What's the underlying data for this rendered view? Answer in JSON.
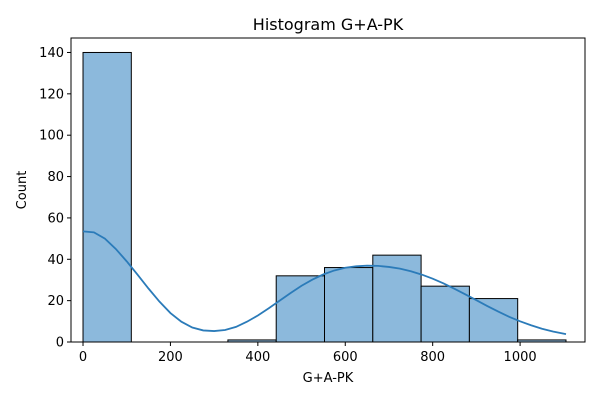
{
  "chart_data": {
    "type": "bar",
    "title": "Histogram G+A-PK",
    "xlabel": "G+A-PK",
    "ylabel": "Count",
    "xlim": [
      -27.5,
      1148.5
    ],
    "ylim": [
      0,
      147
    ],
    "xticks": [
      0,
      200,
      400,
      600,
      800,
      1000
    ],
    "yticks": [
      0,
      20,
      40,
      60,
      80,
      100,
      120,
      140
    ],
    "bins": [
      {
        "x0": 0,
        "x1": 110.5,
        "count": 140
      },
      {
        "x0": 110.5,
        "x1": 221,
        "count": 0
      },
      {
        "x0": 221,
        "x1": 331.5,
        "count": 0
      },
      {
        "x0": 331.5,
        "x1": 442,
        "count": 1
      },
      {
        "x0": 442,
        "x1": 552.5,
        "count": 32
      },
      {
        "x0": 552.5,
        "x1": 663,
        "count": 36
      },
      {
        "x0": 663,
        "x1": 773.5,
        "count": 42
      },
      {
        "x0": 773.5,
        "x1": 884,
        "count": 27
      },
      {
        "x0": 884,
        "x1": 994.5,
        "count": 21
      },
      {
        "x0": 994.5,
        "x1": 1105,
        "count": 1
      }
    ],
    "kde": {
      "x": [
        0,
        25,
        50,
        75,
        100,
        125,
        150,
        175,
        200,
        225,
        250,
        275,
        300,
        325,
        350,
        375,
        400,
        425,
        450,
        475,
        500,
        525,
        550,
        575,
        600,
        625,
        650,
        675,
        700,
        725,
        750,
        775,
        800,
        825,
        850,
        875,
        900,
        925,
        950,
        975,
        1000,
        1025,
        1050,
        1075,
        1105
      ],
      "y": [
        53.5,
        53,
        50,
        45,
        39,
        32.5,
        25.8,
        19.5,
        14,
        9.8,
        7,
        5.6,
        5.3,
        5.8,
        7.3,
        9.8,
        12.8,
        16.3,
        20,
        23.7,
        27.2,
        30.2,
        32.7,
        34.6,
        35.9,
        36.6,
        36.9,
        36.8,
        36.3,
        35.5,
        34.2,
        32.6,
        30.6,
        28.3,
        25.7,
        23,
        20.2,
        17.4,
        14.7,
        12.2,
        10,
        8.1,
        6.4,
        5.1,
        3.8
      ]
    },
    "grid": false,
    "legend": false,
    "colors": {
      "bar_fill": "#8cb9dc",
      "bar_edge": "#000000",
      "kde_line": "#2b7bb9",
      "axis": "#000000"
    }
  }
}
